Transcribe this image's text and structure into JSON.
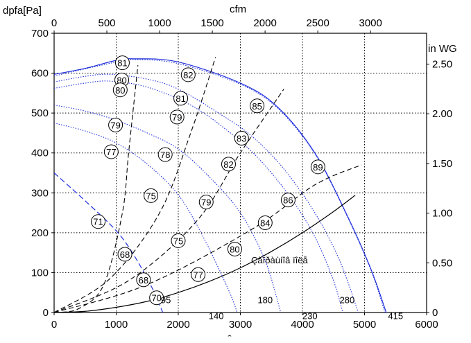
{
  "chart_data": {
    "type": "line",
    "y_left_label": "dpfa[Pa]",
    "x_top_label": "cfm",
    "y_right_label": "in WG",
    "x_bottom_label": "̂",
    "x_bottom_ticks": [
      "0",
      "1000",
      "2000",
      "3000",
      "4000",
      "5000",
      "6000"
    ],
    "x_top_ticks": [
      "0",
      "500",
      "1000",
      "1500",
      "2000",
      "2500",
      "3000"
    ],
    "y_left_ticks": [
      "0",
      "100",
      "200",
      "300",
      "400",
      "500",
      "600",
      "700"
    ],
    "y_right_ticks": [
      "0",
      "0.50",
      "1.00",
      "1.50",
      "2.00",
      "2.50"
    ],
    "xlim": [
      0,
      6000
    ],
    "ylim": [
      0,
      700
    ],
    "grid": true,
    "system_curve_label": "Çàïðàùíîâ ïîëå",
    "series": [
      {
        "kind": "speed",
        "values": [
          [
            0,
            597
          ],
          [
            500,
            612
          ],
          [
            1000,
            632
          ],
          [
            1300,
            636
          ],
          [
            2000,
            628
          ],
          [
            3000,
            575
          ],
          [
            3600,
            515
          ],
          [
            4200,
            400
          ],
          [
            4700,
            250
          ],
          [
            5100,
            110
          ],
          [
            5350,
            0
          ]
        ]
      },
      {
        "kind": "speed",
        "values": [
          [
            0,
            593
          ],
          [
            1000,
            628
          ],
          [
            1300,
            634
          ],
          [
            2000,
            624
          ],
          [
            3000,
            572
          ],
          [
            3600,
            512
          ],
          [
            4200,
            398
          ],
          [
            4700,
            248
          ],
          [
            5100,
            108
          ],
          [
            5330,
            0
          ]
        ]
      },
      {
        "kind": "speed",
        "values": [
          [
            0,
            578
          ],
          [
            500,
            592
          ],
          [
            900,
            597
          ],
          [
            1500,
            585
          ],
          [
            2000,
            560
          ],
          [
            2700,
            495
          ],
          [
            3200,
            440
          ],
          [
            3700,
            360
          ],
          [
            4200,
            250
          ],
          [
            4600,
            130
          ],
          [
            4900,
            0
          ]
        ]
      },
      {
        "kind": "speed",
        "values": [
          [
            0,
            562
          ],
          [
            500,
            575
          ],
          [
            900,
            580
          ],
          [
            1500,
            565
          ],
          [
            2200,
            520
          ],
          [
            2800,
            455
          ],
          [
            3300,
            385
          ],
          [
            3800,
            290
          ],
          [
            4200,
            190
          ],
          [
            4500,
            80
          ],
          [
            4650,
            0
          ]
        ]
      },
      {
        "kind": "speed",
        "values": [
          [
            0,
            520
          ],
          [
            500,
            505
          ],
          [
            1000,
            482
          ],
          [
            1500,
            450
          ],
          [
            2000,
            410
          ],
          [
            2500,
            340
          ],
          [
            3000,
            250
          ],
          [
            3400,
            130
          ],
          [
            3650,
            0
          ]
        ]
      },
      {
        "kind": "speed",
        "values": [
          [
            0,
            475
          ],
          [
            500,
            455
          ],
          [
            1000,
            425
          ],
          [
            1500,
            372
          ],
          [
            2000,
            295
          ],
          [
            2400,
            190
          ],
          [
            2800,
            60
          ],
          [
            2950,
            0
          ]
        ]
      },
      {
        "kind": "speed",
        "values": [
          [
            0,
            350
          ],
          [
            500,
            280
          ],
          [
            1000,
            205
          ],
          [
            1300,
            140
          ],
          [
            1600,
            55
          ],
          [
            1750,
            0
          ]
        ]
      },
      {
        "kind": "system",
        "values": [
          [
            0,
            0
          ],
          [
            500,
            3
          ],
          [
            1000,
            13
          ],
          [
            1500,
            28
          ],
          [
            2000,
            50
          ],
          [
            2500,
            78
          ],
          [
            3000,
            112
          ],
          [
            3500,
            153
          ],
          [
            4000,
            200
          ],
          [
            4500,
            253
          ],
          [
            4850,
            294
          ]
        ]
      }
    ],
    "efficiency_lines": [
      {
        "name": "70",
        "values": [
          [
            0,
            0
          ],
          [
            400,
            10
          ],
          [
            800,
            70
          ],
          [
            1100,
            250
          ],
          [
            1200,
            400
          ],
          [
            1350,
            620
          ]
        ]
      },
      {
        "name": "",
        "values": [
          [
            0,
            0
          ],
          [
            900,
            85
          ],
          [
            1700,
            250
          ],
          [
            2200,
            450
          ],
          [
            2600,
            640
          ]
        ]
      },
      {
        "name": "",
        "values": [
          [
            0,
            0
          ],
          [
            1200,
            80
          ],
          [
            2300,
            230
          ],
          [
            3000,
            400
          ],
          [
            3700,
            560
          ]
        ]
      },
      {
        "name": "",
        "values": [
          [
            0,
            0
          ],
          [
            1500,
            70
          ],
          [
            3200,
            210
          ],
          [
            4200,
            320
          ],
          [
            4950,
            370
          ]
        ]
      }
    ],
    "efficiency_markers": [
      {
        "label": "81",
        "x": 1100,
        "y": 626
      },
      {
        "label": "80",
        "x": 1090,
        "y": 583
      },
      {
        "label": "80",
        "x": 1065,
        "y": 558
      },
      {
        "label": "79",
        "x": 990,
        "y": 470
      },
      {
        "label": "77",
        "x": 920,
        "y": 403
      },
      {
        "label": "71",
        "x": 710,
        "y": 228
      },
      {
        "label": "68",
        "x": 1140,
        "y": 146
      },
      {
        "label": "68",
        "x": 1440,
        "y": 82
      },
      {
        "label": "70",
        "x": 1650,
        "y": 37
      },
      {
        "label": "82",
        "x": 2160,
        "y": 596
      },
      {
        "label": "81",
        "x": 2040,
        "y": 537
      },
      {
        "label": "79",
        "x": 1980,
        "y": 490
      },
      {
        "label": "78",
        "x": 1790,
        "y": 396
      },
      {
        "label": "75",
        "x": 1560,
        "y": 293
      },
      {
        "label": "75",
        "x": 2000,
        "y": 180
      },
      {
        "label": "77",
        "x": 2320,
        "y": 95
      },
      {
        "label": "85",
        "x": 3270,
        "y": 518
      },
      {
        "label": "83",
        "x": 3020,
        "y": 437
      },
      {
        "label": "82",
        "x": 2810,
        "y": 372
      },
      {
        "label": "79",
        "x": 2450,
        "y": 277
      },
      {
        "label": "80",
        "x": 2910,
        "y": 159
      },
      {
        "label": "84",
        "x": 3400,
        "y": 225
      },
      {
        "label": "86",
        "x": 3770,
        "y": 282
      },
      {
        "label": "89",
        "x": 4250,
        "y": 365
      }
    ],
    "curve_end_labels": [
      {
        "label": "95",
        "x": 1800,
        "y": 20
      },
      {
        "label": "140",
        "x": 2610,
        "y": -20
      },
      {
        "label": "180",
        "x": 3400,
        "y": 20
      },
      {
        "label": "230",
        "x": 4120,
        "y": -20
      },
      {
        "label": "280",
        "x": 4720,
        "y": 20
      },
      {
        "label": "415",
        "x": 5500,
        "y": -20
      }
    ]
  }
}
